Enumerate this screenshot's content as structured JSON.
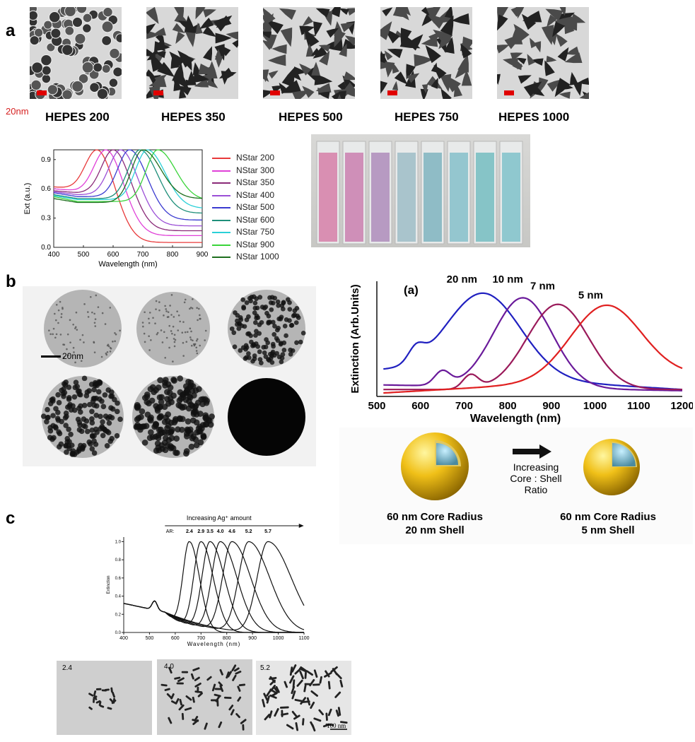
{
  "panels": {
    "a": {
      "letter": "a",
      "scale_label": "20nm",
      "tem_labels": [
        "HEPES 200",
        "HEPES 350",
        "HEPES 500",
        "HEPES 750",
        "HEPES 1000"
      ]
    },
    "b": {
      "letter": "b",
      "scale_label": "20nm",
      "schematic": {
        "left_core": "60 nm Core Radius",
        "left_shell": "20 nm Shell",
        "arrow_label_1": "Increasing",
        "arrow_label_2": "Core : Shell Ratio",
        "right_core": "60 nm Core Radius",
        "right_shell": "5 nm Shell"
      }
    },
    "c": {
      "letter": "c",
      "tem_labels": [
        "2.4",
        "4.0",
        "5.2"
      ],
      "scale_label": "100 nm"
    }
  },
  "colors": {
    "nstar": [
      "#e8393a",
      "#e040d8",
      "#8a2a78",
      "#9b4fd6",
      "#3b3bd0",
      "#1f8f7a",
      "#2ad0d8",
      "#3ad43a",
      "#1e6e1e"
    ],
    "b_series": [
      "#2020c0",
      "#6a1a9a",
      "#9a1a5a",
      "#e02020"
    ]
  },
  "chart_data": [
    {
      "type": "line",
      "xlabel": "Wavelength (nm)",
      "ylabel": "Ext (a.u.)",
      "xlim": [
        400,
        900
      ],
      "ylim": [
        0,
        1.0
      ],
      "xticks": [
        400,
        500,
        600,
        700,
        800,
        900
      ],
      "yticks": [
        0.0,
        0.3,
        0.6,
        0.9
      ],
      "legend_position": "right",
      "series": [
        {
          "name": "NStar 200",
          "peak": 545,
          "start": 0.62,
          "dip": 0.6,
          "end": 0.05
        },
        {
          "name": "NStar 300",
          "peak": 575,
          "start": 0.6,
          "dip": 0.58,
          "end": 0.12
        },
        {
          "name": "NStar 350",
          "peak": 600,
          "start": 0.58,
          "dip": 0.56,
          "end": 0.17
        },
        {
          "name": "NStar 400",
          "peak": 625,
          "start": 0.57,
          "dip": 0.54,
          "end": 0.22
        },
        {
          "name": "NStar 500",
          "peak": 655,
          "start": 0.56,
          "dip": 0.52,
          "end": 0.28
        },
        {
          "name": "NStar 600",
          "peak": 690,
          "start": 0.54,
          "dip": 0.5,
          "end": 0.35
        },
        {
          "name": "NStar 750",
          "peak": 715,
          "start": 0.53,
          "dip": 0.49,
          "end": 0.4
        },
        {
          "name": "NStar 900",
          "peak": 750,
          "start": 0.52,
          "dip": 0.47,
          "end": 0.48
        },
        {
          "name": "NStar 1000",
          "peak": 700,
          "start": 0.5,
          "dip": 0.46,
          "end": 0.5
        }
      ]
    },
    {
      "type": "line",
      "title": "(a)",
      "xlabel": "Wavelength (nm)",
      "ylabel": "Extinction (Arb.Units)",
      "xlim": [
        500,
        1200
      ],
      "xticks": [
        500,
        600,
        700,
        800,
        900,
        1000,
        1100,
        1200
      ],
      "series": [
        {
          "name": "20 nm",
          "peak": 745,
          "shoulder": 590
        },
        {
          "name": "10 nm",
          "peak": 835,
          "shoulder": 650
        },
        {
          "name": "7 nm",
          "peak": 915,
          "shoulder": 715
        },
        {
          "name": "5 nm",
          "peak": 1025,
          "shoulder": 0
        }
      ]
    },
    {
      "type": "line",
      "title": "Increasing Ag⁺ amount",
      "xlabel": "Wavelength (nm)",
      "ylabel": "Extinction",
      "xlim": [
        400,
        1100
      ],
      "ylim": [
        0,
        1.05
      ],
      "xticks": [
        400,
        500,
        600,
        700,
        800,
        900,
        1000,
        1100
      ],
      "yticks": [
        0.0,
        0.2,
        0.4,
        0.6,
        0.8,
        1.0
      ],
      "ar_prefix": "AR:",
      "series": [
        {
          "name": "2.4",
          "peak": 655
        },
        {
          "name": "2.9",
          "peak": 700
        },
        {
          "name": "3.5",
          "peak": 735
        },
        {
          "name": "4.0",
          "peak": 775
        },
        {
          "name": "4.6",
          "peak": 820
        },
        {
          "name": "5.2",
          "peak": 885
        },
        {
          "name": "5.7",
          "peak": 960
        }
      ]
    }
  ]
}
